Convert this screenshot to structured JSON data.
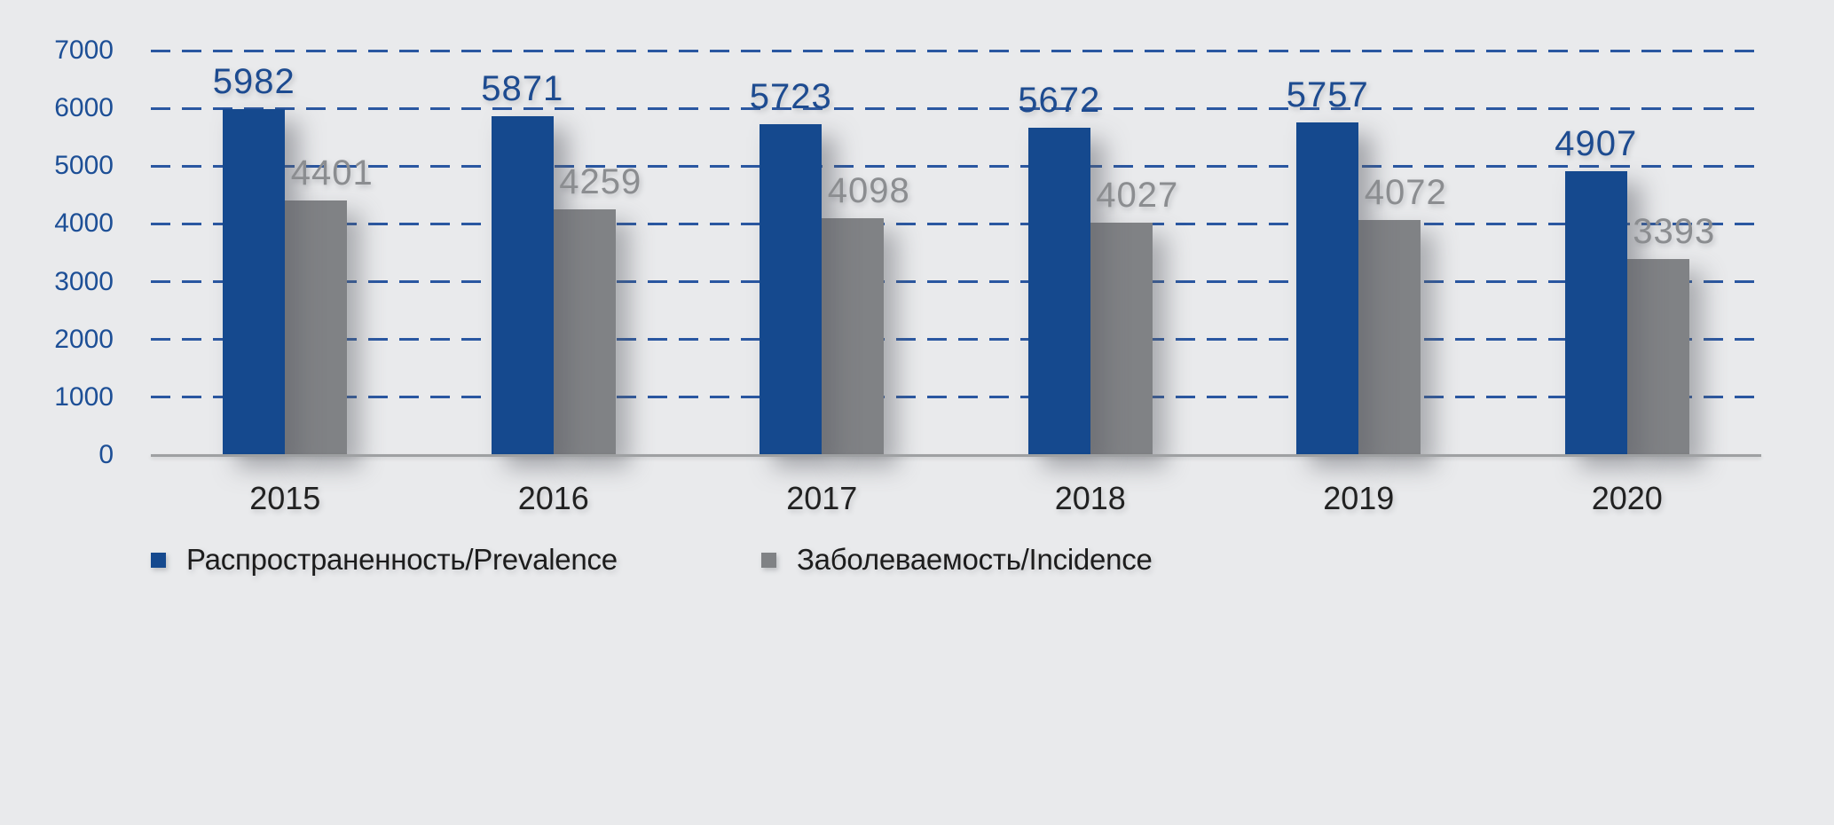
{
  "background_color": "#e9eaec",
  "colors": {
    "prevalence_bar": "#15498e",
    "incidence_bar": "#808285",
    "grid_line": "#2a57a1",
    "axis_tick_text": "#1d4f96",
    "prevalence_value_text": "#1d4b90",
    "incidence_value_text": "#8b8d90",
    "year_text": "#212121",
    "legend_text": "#1c1c1c",
    "baseline": "#9ea0a2"
  },
  "chart_data": {
    "type": "bar",
    "categories": [
      "2015",
      "2016",
      "2017",
      "2018",
      "2019",
      "2020"
    ],
    "series": [
      {
        "name": "Распространенность/Prevalence",
        "values": [
          5982,
          5871,
          5723,
          5672,
          5757,
          4907
        ],
        "color": "#15498e"
      },
      {
        "name": "Заболеваемость/Incidence",
        "values": [
          4401,
          4259,
          4098,
          4027,
          4072,
          3393
        ],
        "color": "#808285"
      }
    ],
    "title": "",
    "xlabel": "",
    "ylabel": "",
    "ylim": [
      0,
      7000
    ],
    "ytick_step": 1000,
    "yticks": [
      "7000",
      "6000",
      "5000",
      "4000",
      "3000",
      "2000",
      "1000",
      "0"
    ],
    "grid": "horizontal dashed gridlines at every 1000",
    "value_labels": "shown above each bar",
    "legend_position": "bottom-left"
  }
}
